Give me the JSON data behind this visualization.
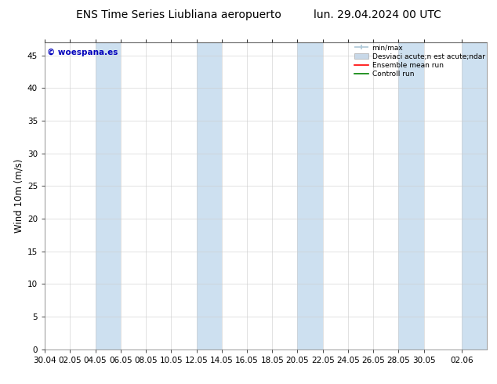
{
  "title_left": "ENS Time Series Liubliana aeropuerto",
  "title_right": "lun. 29.04.2024 00 UTC",
  "ylabel": "Wind 10m (m/s)",
  "watermark": "© woespana.es",
  "ylim": [
    0,
    47
  ],
  "yticks": [
    0,
    5,
    10,
    15,
    20,
    25,
    30,
    35,
    40,
    45
  ],
  "xtick_labels": [
    "30.04",
    "02.05",
    "04.05",
    "06.05",
    "08.05",
    "10.05",
    "12.05",
    "14.05",
    "16.05",
    "18.05",
    "20.05",
    "22.05",
    "24.05",
    "26.05",
    "28.05",
    "30.05",
    "02.06"
  ],
  "xtick_positions": [
    0,
    2,
    4,
    6,
    8,
    10,
    12,
    14,
    16,
    18,
    20,
    22,
    24,
    26,
    28,
    30,
    33
  ],
  "shade_pairs": [
    [
      4,
      6
    ],
    [
      12,
      14
    ],
    [
      20,
      22
    ],
    [
      28,
      30
    ],
    [
      33,
      35
    ]
  ],
  "shade_color": "#cde0f0",
  "background_color": "#ffffff",
  "legend_minmax_color": "#aec8d8",
  "legend_std_color": "#c8d8e8",
  "legend_ensemble_color": "#ff0000",
  "legend_control_color": "#008000",
  "title_fontsize": 10,
  "tick_fontsize": 7.5,
  "ylabel_fontsize": 8.5,
  "watermark_color": "#0000bb",
  "grid_color": "#cccccc",
  "total_days": 35,
  "legend_minmax_label": "min/max",
  "legend_std_label": "Desviaci acute;n est acute;ndar",
  "legend_ens_label": "Ensemble mean run",
  "legend_ctrl_label": "Controll run"
}
